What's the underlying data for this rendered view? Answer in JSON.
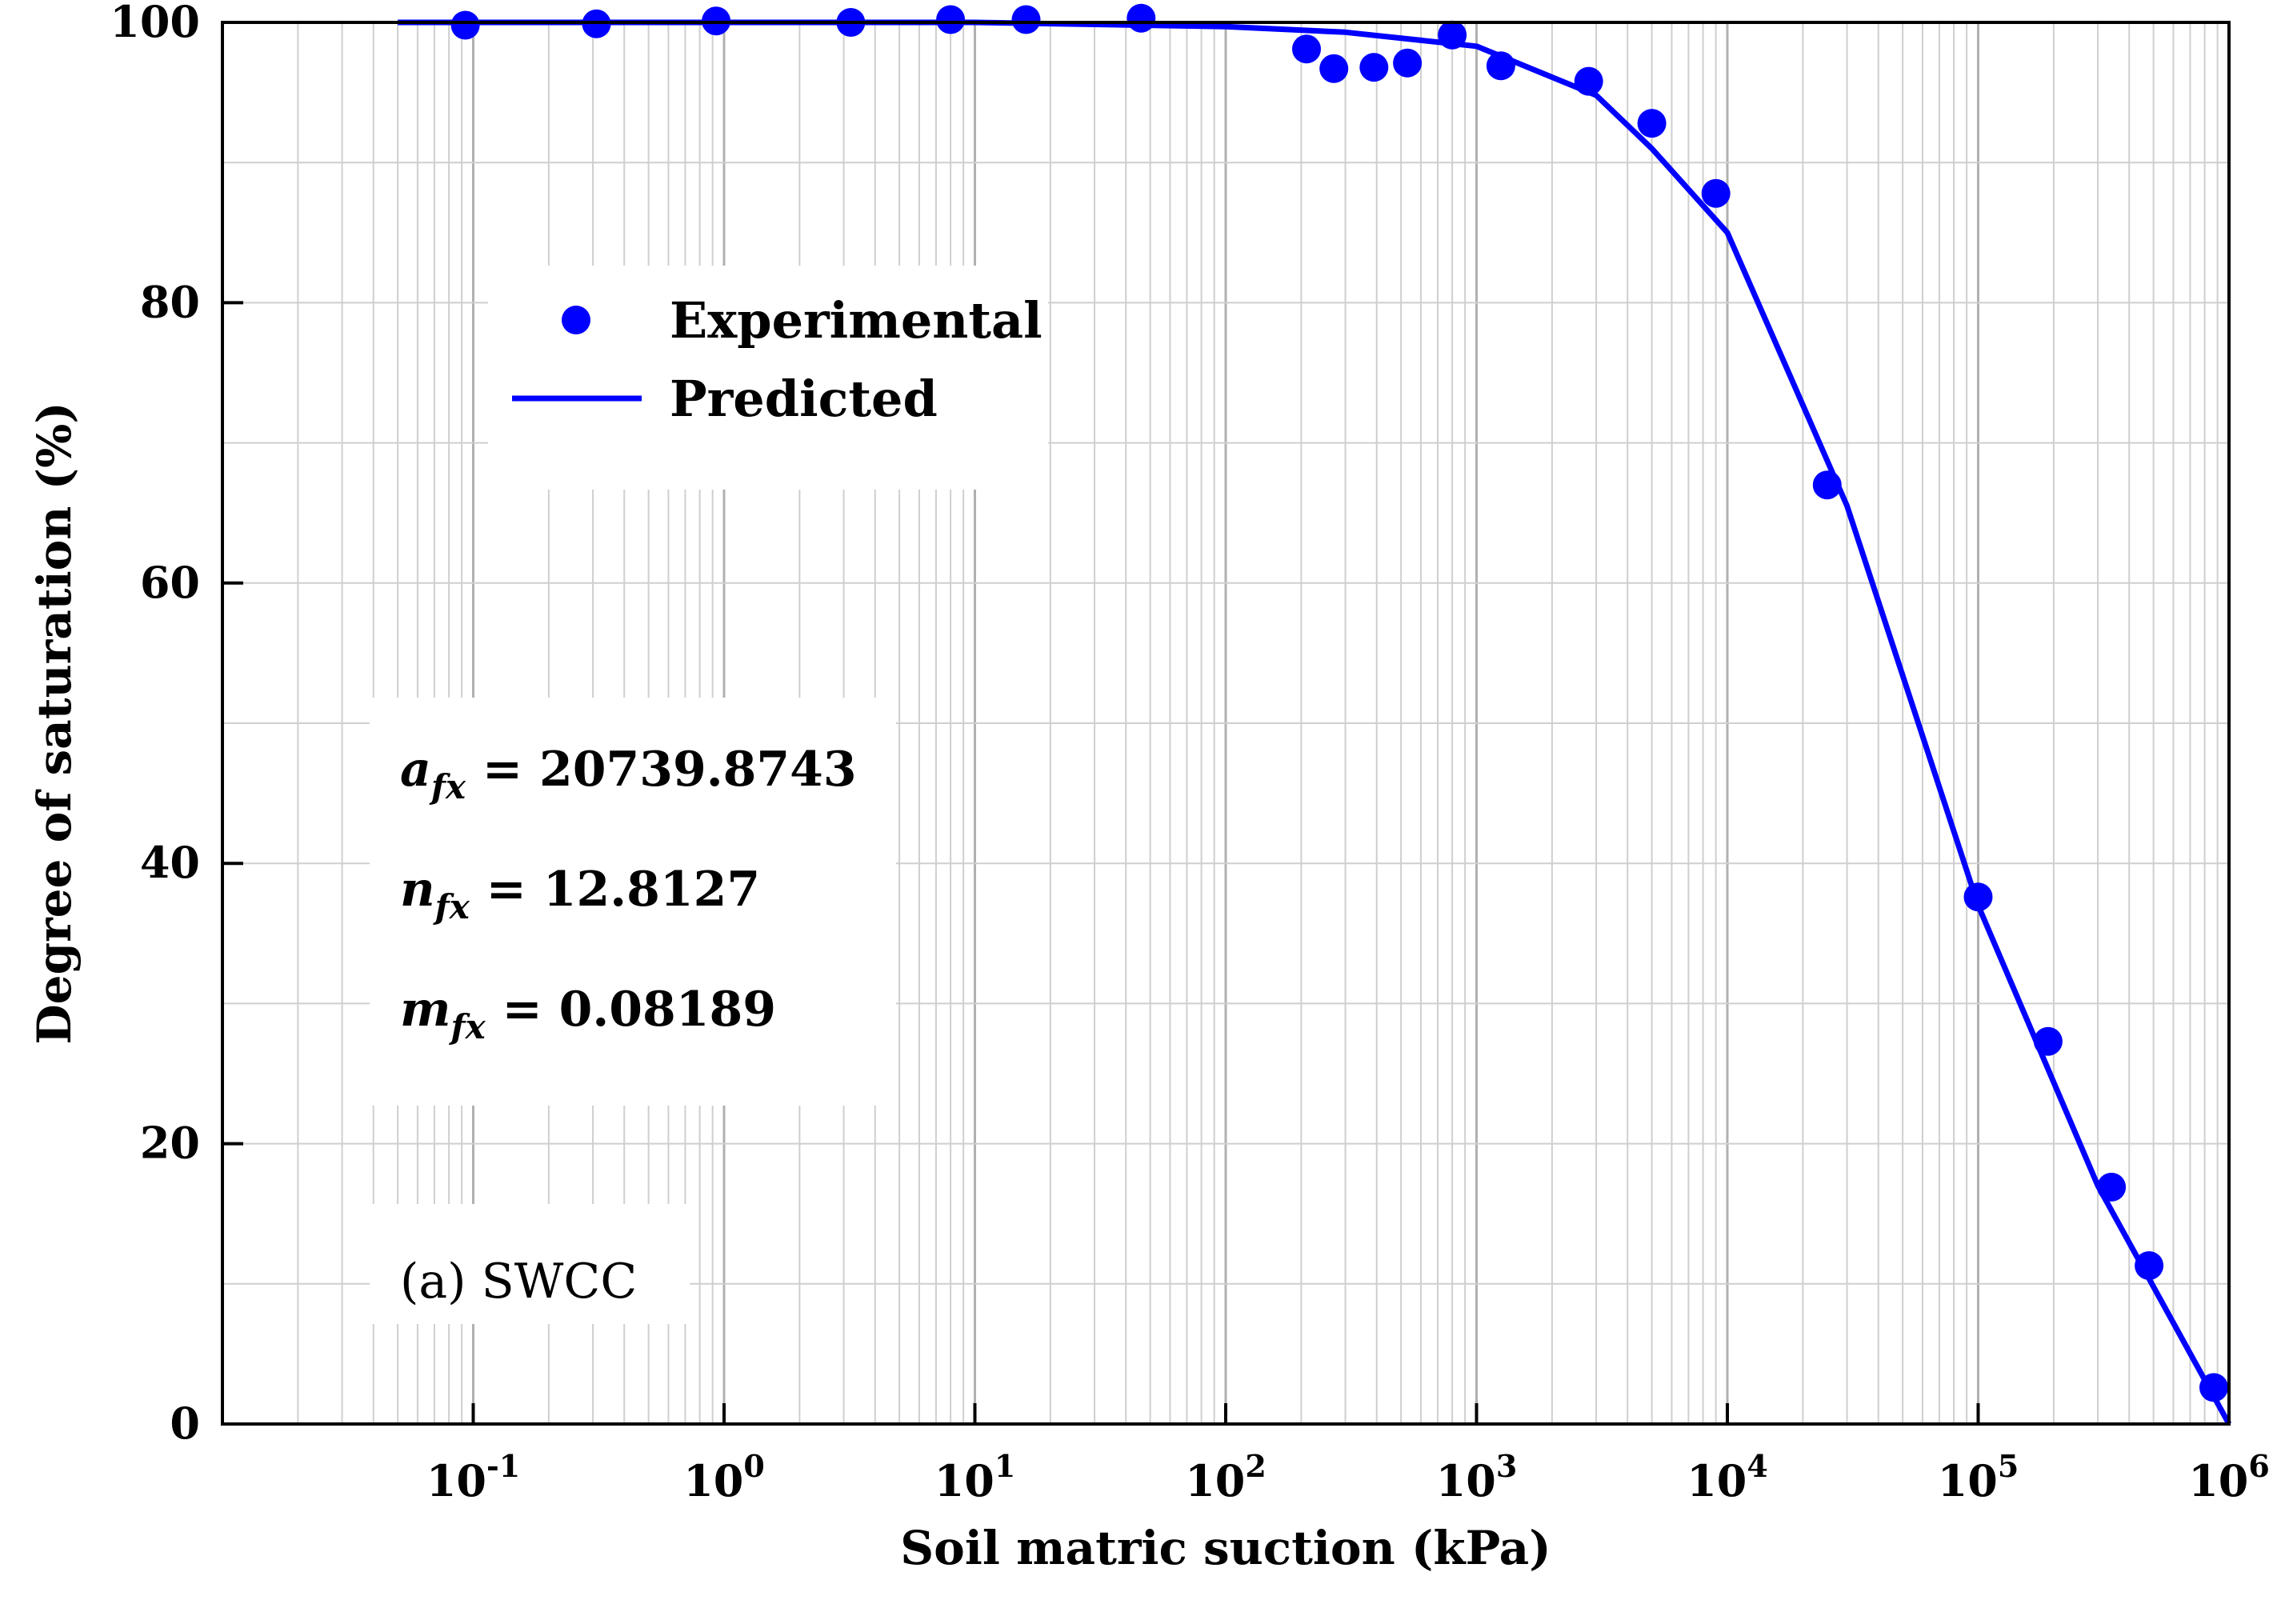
{
  "chart_data": {
    "type": "scatter",
    "xscale": "log",
    "xlim": [
      0.01,
      1000000
    ],
    "ylim": [
      0,
      100
    ],
    "xlabel": "Soil matric suction (kPa)",
    "ylabel": "Degree of saturation (%)",
    "y_ticks": [
      0,
      20,
      40,
      60,
      80,
      100
    ],
    "x_ticks": [
      {
        "base": "10",
        "exp": "-1",
        "value": 0.1
      },
      {
        "base": "10",
        "exp": "0",
        "value": 1
      },
      {
        "base": "10",
        "exp": "1",
        "value": 10
      },
      {
        "base": "10",
        "exp": "2",
        "value": 100
      },
      {
        "base": "10",
        "exp": "3",
        "value": 1000
      },
      {
        "base": "10",
        "exp": "4",
        "value": 10000
      },
      {
        "base": "10",
        "exp": "5",
        "value": 100000
      },
      {
        "base": "10",
        "exp": "6",
        "value": 1000000
      }
    ],
    "grid": true,
    "legend_position": "top-left",
    "series": [
      {
        "name": "Experimental",
        "kind": "markers",
        "color": "#0000ff",
        "x": [
          0.093,
          0.31,
          0.93,
          3.2,
          8.0,
          16,
          46,
          210,
          270,
          390,
          530,
          800,
          1250,
          2800,
          5000,
          9000,
          25000,
          100000,
          190000,
          340000,
          480000,
          870000
        ],
        "y": [
          99.8,
          99.9,
          100.1,
          100.0,
          100.2,
          100.2,
          100.3,
          98.1,
          96.7,
          96.8,
          97.1,
          99.1,
          96.9,
          95.8,
          92.8,
          87.8,
          67.0,
          37.6,
          27.3,
          16.9,
          11.3,
          2.6
        ]
      },
      {
        "name": "Predicted",
        "kind": "line",
        "color": "#0000ff",
        "x": [
          0.05,
          1,
          10,
          100,
          300,
          1000,
          3000,
          5000,
          10000,
          30000,
          100000,
          300000,
          1000000
        ],
        "y": [
          100.0,
          100.0,
          100.0,
          99.7,
          99.3,
          98.3,
          94.8,
          91.0,
          85.0,
          65.5,
          37.0,
          17.0,
          0.0
        ]
      }
    ]
  },
  "annotations": {
    "a_fx": {
      "sym": "a",
      "sub": "fx",
      "value": " = 20739.8743"
    },
    "n_fx": {
      "sym": "n",
      "sub": "fx",
      "value": " = 12.8127"
    },
    "m_fx": {
      "sym": "m",
      "sub": "fx",
      "value": " = 0.08189"
    },
    "panel_label": "(a) SWCC"
  }
}
